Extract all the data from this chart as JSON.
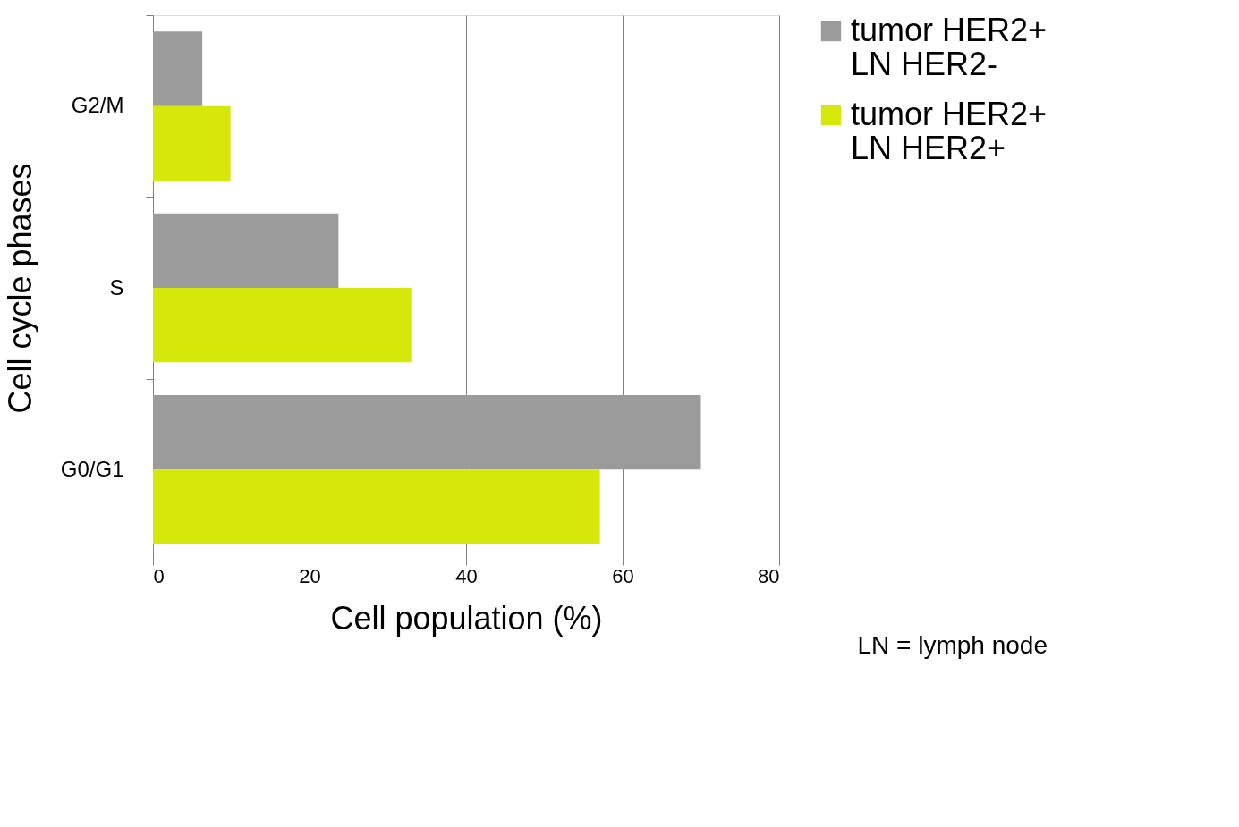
{
  "chart_data": {
    "type": "bar",
    "orientation": "horizontal",
    "xlabel": "Cell population (%)",
    "ylabel": "Cell cycle phases",
    "categories": [
      "G2/M",
      "S",
      "G0/G1"
    ],
    "series": [
      {
        "name": "tumor HER2+ LN HER2-",
        "color": "#9b9b9b",
        "values": [
          6.3,
          23.7,
          70.0
        ]
      },
      {
        "name": "tumor HER2+ LN HER2+",
        "color": "#d5e809",
        "values": [
          9.9,
          33.0,
          57.1
        ]
      }
    ],
    "xlim": [
      0,
      80
    ],
    "xticks": [
      0,
      20,
      40,
      60,
      80
    ],
    "grid": "x",
    "legend": "right",
    "annotations": [
      "LN = lymph node"
    ]
  }
}
